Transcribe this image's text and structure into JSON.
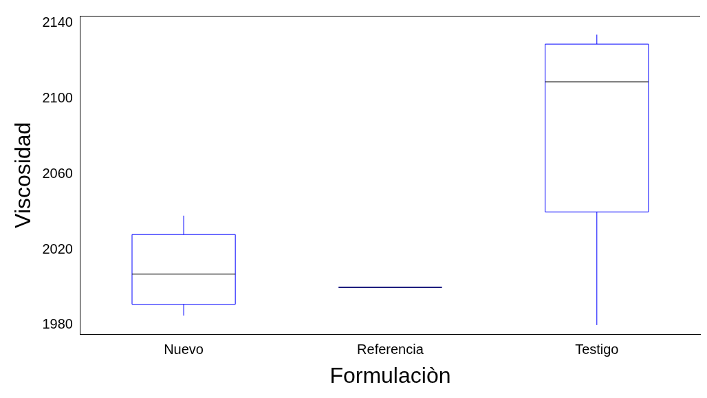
{
  "chart_data": {
    "type": "box",
    "xlabel": "Formulaciòn",
    "ylabel": "Viscosidad",
    "categories": [
      "Nuevo",
      "Referencia",
      "Testigo"
    ],
    "color": "#0000ff",
    "boxes": [
      {
        "low": 1985,
        "q1": 1991,
        "median": 2007,
        "q3": 2028,
        "high": 2038
      },
      {
        "low": 2000,
        "q1": 2000,
        "median": 2000,
        "q3": 2000,
        "high": 2000
      },
      {
        "low": 1980,
        "q1": 2040,
        "median": 2109,
        "q3": 2129,
        "high": 2134
      }
    ],
    "ylim": [
      1975,
      2144
    ],
    "yticks": [
      1980,
      2020,
      2060,
      2100,
      2140
    ]
  }
}
